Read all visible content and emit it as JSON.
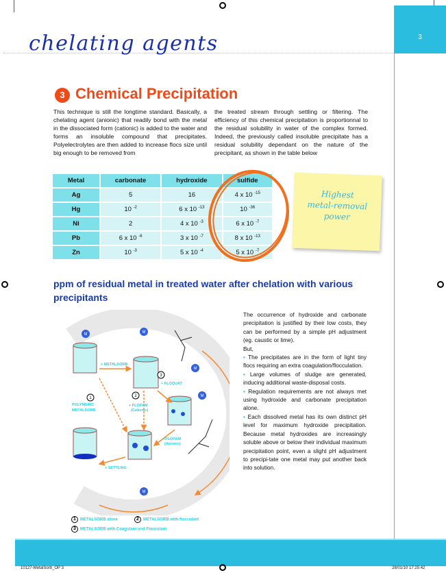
{
  "page": {
    "number": "3",
    "section_title": "chelating agents"
  },
  "section": {
    "number": "3",
    "heading": "Chemical Precipitation",
    "left_paragraph": "This technique is still the longtime standard. Basically, a chelating agent (anionic) that readily bond with the metal in the dissociated form (cationic) is added to the water and forms an insoluble compound that precipitates. Polyelectrolytes are then added to increase flocs size until big enough to be removed from",
    "right_paragraph": "the treated stream through settling or filtering. The efficiency of this chemical precipitation is proportionnal to the residual solubility in water of the complex formed. Indeed, the previously called insoluble precipitate has a residual solubility dependant on the nature of the precipitant, as shown in the table below"
  },
  "table": {
    "headers": [
      "Metal",
      "carbonate",
      "hydroxide",
      "sulfide"
    ],
    "rows": [
      {
        "metal": "Ag",
        "carbonate": [
          "5",
          ""
        ],
        "hydroxide": [
          "16",
          ""
        ],
        "sulfide": [
          "4 x 10",
          "-15"
        ]
      },
      {
        "metal": "Hg",
        "carbonate": [
          "10",
          "-2"
        ],
        "hydroxide": [
          "6 x 10",
          "-13"
        ],
        "sulfide": [
          "10",
          "-36"
        ]
      },
      {
        "metal": "Ni",
        "carbonate": [
          "2",
          ""
        ],
        "hydroxide": [
          "4 x 10",
          "-3"
        ],
        "sulfide": [
          "6 x 10",
          "-7"
        ]
      },
      {
        "metal": "Pb",
        "carbonate": [
          "6 x 10",
          "-6"
        ],
        "hydroxide": [
          "3 x 10",
          "-7"
        ],
        "sulfide": [
          "8 x 10",
          "-13"
        ]
      },
      {
        "metal": "Zn",
        "carbonate": [
          "10",
          "-3"
        ],
        "hydroxide": [
          "5 x 10",
          "-4"
        ],
        "sulfide": [
          "5 x 10",
          "-7"
        ]
      }
    ]
  },
  "sticky_note": {
    "line1": "Highest",
    "line2": "metal-removal",
    "line3": "power"
  },
  "subheading": "ppm of residual metal in treated water after chelation with various precipitants",
  "side_text": {
    "intro": "The occurrence of hydroxide and carbonate precipitation is justified by their low costs, they can be performed by a simple pH adjustment (eg. caustic or lime).",
    "but": "But,",
    "bullets": [
      "The precipitates are in the form of light tiny flocs requiring an extra coagulation/flocculation.",
      "Large volumes of sludge are generated, inducing additional waste-disposal costs.",
      "Regulation requirements are not always met using hydroxide and carbonate precipitation alone.",
      "Each dissolved metal has its own distinct pH level for maximum hydroxide precipitation. Because metal hydroxides are increasingly soluble above or below their individual maximum precipitation point, even a slight pH adjustment to precipi-tate one metal may put another back into solution."
    ]
  },
  "diagram": {
    "labels": {
      "metalsorb": "+ METALSORB",
      "floquat": "+ FLOQUAT",
      "polymeric1": "POLYMERIC",
      "polymeric2": "METALSORB",
      "flopam_c1": "+ FLOPAM",
      "flopam_c2": "(Cationic)",
      "flopam_a1": "+FLOPAM",
      "flopam_a2": "(Anionic)",
      "settling": "+ SETTLING",
      "m": "M"
    },
    "steps": [
      "1",
      "2",
      "3"
    ],
    "legend": [
      "METALSORB alone",
      "METALSORB with flocculant",
      "METALSORB with Coagulant and Flocculant"
    ]
  },
  "footer": {
    "file": "10127-MetalSorb_OP  3",
    "date": "28/01/10  17:25:42"
  },
  "colors": {
    "accent": "#f04a18",
    "brand_blue": "#1a30a8",
    "cyan": "#2bbde0"
  }
}
